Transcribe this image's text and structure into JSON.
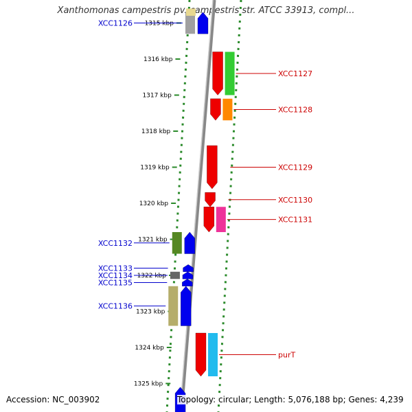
{
  "title": "Xanthomonas campestris pv. campestris str. ATCC 33913, compl...",
  "footer": {
    "accession": "Accession: NC_003902",
    "summary": "Topology: circular; Length: 5,076,188 bp; Genes: 4,239"
  },
  "colors": {
    "forward_label": "#0000cc",
    "reverse_label": "#cc0000",
    "dotted_track": "#2a8a2a",
    "backbone": "#888888"
  },
  "scale": {
    "unit": "kbp",
    "ticks": [
      {
        "kbp": 1315,
        "label": "1315 kbp"
      },
      {
        "kbp": 1316,
        "label": "1316 kbp"
      },
      {
        "kbp": 1317,
        "label": "1317 kbp"
      },
      {
        "kbp": 1318,
        "label": "1318 kbp"
      },
      {
        "kbp": 1319,
        "label": "1319 kbp"
      },
      {
        "kbp": 1320,
        "label": "1320 kbp"
      },
      {
        "kbp": 1321,
        "label": "1321 kbp"
      },
      {
        "kbp": 1322,
        "label": "1322 kbp"
      },
      {
        "kbp": 1323,
        "label": "1323 kbp"
      },
      {
        "kbp": 1324,
        "label": "1324 kbp"
      },
      {
        "kbp": 1325,
        "label": "1325 kbp"
      }
    ]
  },
  "features": [
    {
      "label": "XCC1126",
      "strand": "+",
      "start": 1314.7,
      "end": 1315.3,
      "cog_color": "#a0a0a0",
      "gene_color": "#0000ee"
    },
    {
      "label": "XCC1127",
      "strand": "-",
      "start": 1315.8,
      "end": 1317.0,
      "cog_color": "#33cc33",
      "gene_color": "#ee0000"
    },
    {
      "label": "XCC1128",
      "strand": "-",
      "start": 1317.1,
      "end": 1317.7,
      "cog_color": "#ff8800",
      "gene_color": "#ee0000"
    },
    {
      "label": "XCC1129",
      "strand": "-",
      "start": 1318.4,
      "end": 1319.6,
      "cog_color": "",
      "gene_color": "#ee0000"
    },
    {
      "label": "XCC1130",
      "strand": "-",
      "start": 1319.7,
      "end": 1320.1,
      "cog_color": "",
      "gene_color": "#ee0000"
    },
    {
      "label": "XCC1131",
      "strand": "-",
      "start": 1320.1,
      "end": 1320.8,
      "cog_color": "#ee3399",
      "gene_color": "#ee0000"
    },
    {
      "label": "XCC1132",
      "strand": "+",
      "start": 1320.8,
      "end": 1321.4,
      "cog_color": "#558822",
      "gene_color": "#0000ee"
    },
    {
      "label": "XCC1133",
      "strand": "+",
      "start": 1321.7,
      "end": 1321.9,
      "cog_color": "",
      "gene_color": "#0000ee"
    },
    {
      "label": "XCC1134",
      "strand": "+",
      "start": 1321.9,
      "end": 1322.1,
      "cog_color": "#666666",
      "gene_color": "#0000ee"
    },
    {
      "label": "XCC1135",
      "strand": "+",
      "start": 1322.1,
      "end": 1322.3,
      "cog_color": "",
      "gene_color": "#0000ee"
    },
    {
      "label": "XCC1136",
      "strand": "+",
      "start": 1322.3,
      "end": 1323.4,
      "cog_color": "#b5ad6a",
      "gene_color": "#0000ee"
    },
    {
      "label": "purT",
      "strand": "-",
      "start": 1323.6,
      "end": 1324.8,
      "cog_color": "#22bbee",
      "gene_color": "#ee0000"
    },
    {
      "label": "",
      "strand": "+",
      "start": 1325.1,
      "end": 1325.8,
      "cog_color": "",
      "gene_color": "#0000ee"
    },
    {
      "label": "",
      "strand": "+",
      "start": 1314.6,
      "end": 1314.8,
      "cog_color": "#e8d890",
      "gene_color": ""
    }
  ]
}
